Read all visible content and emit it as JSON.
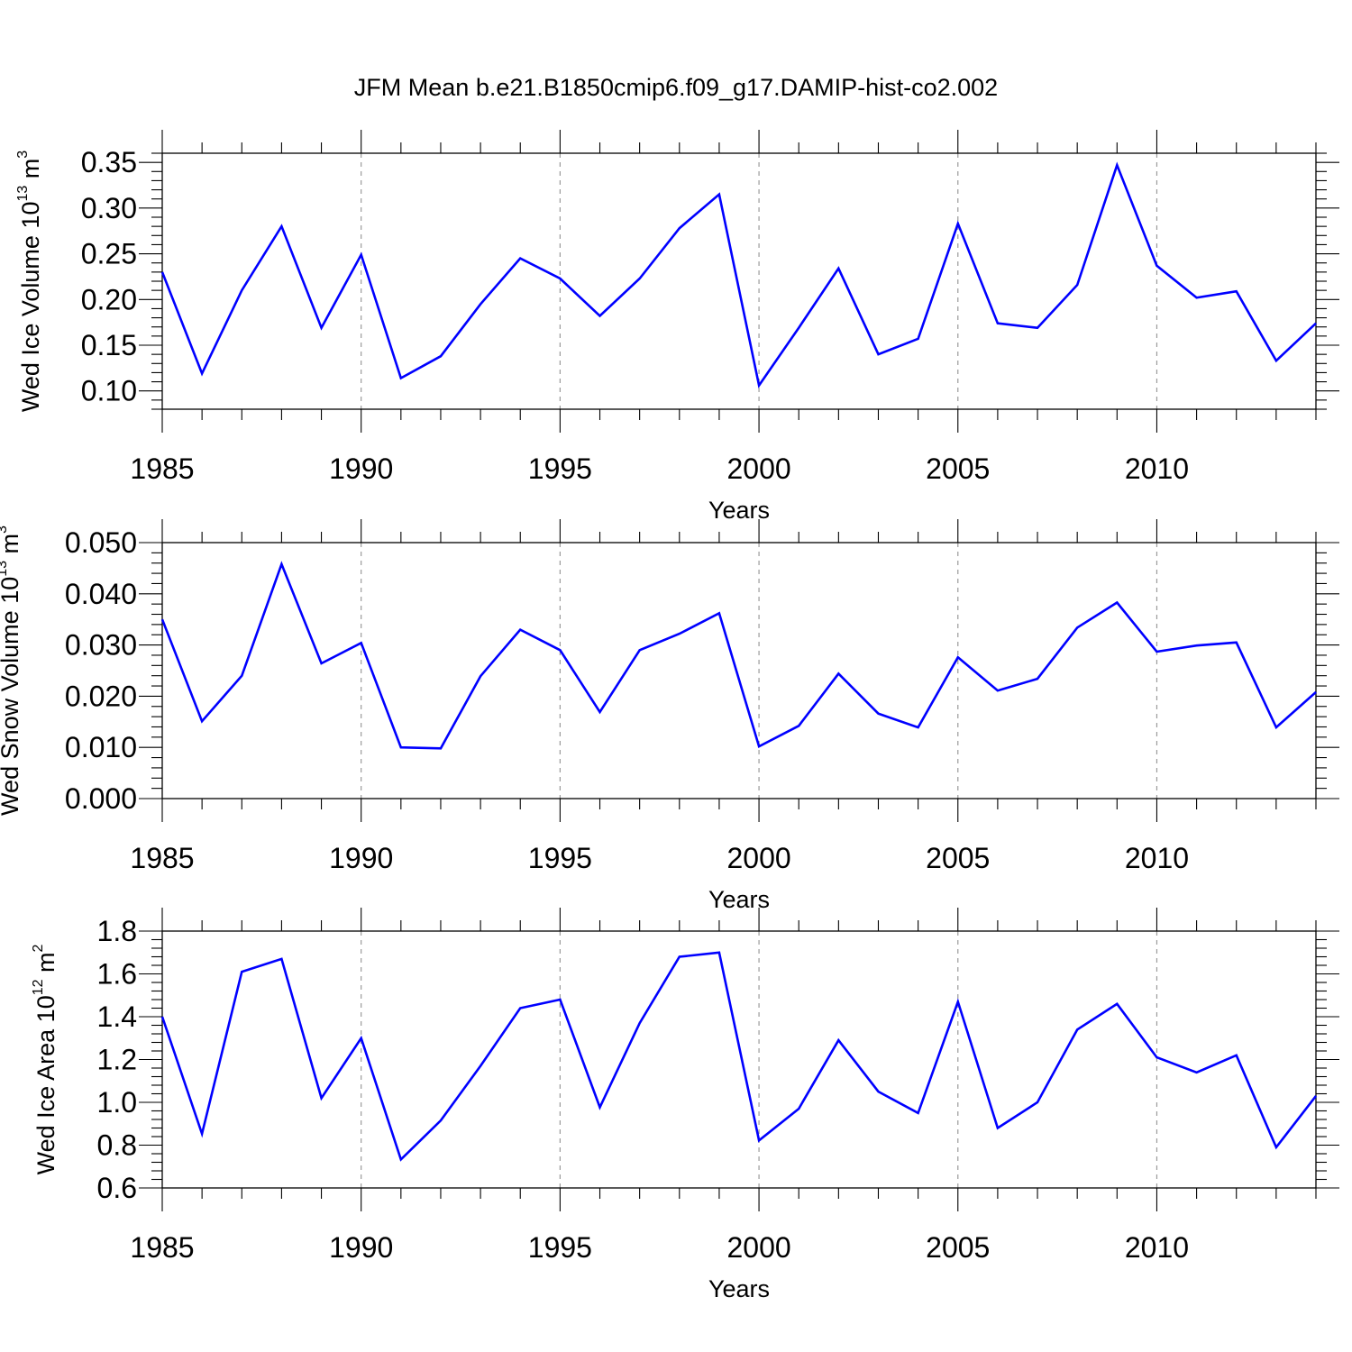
{
  "figure": {
    "title": "JFM Mean b.e21.B1850cmip6.f09_g17.DAMIP-hist-co2.002"
  },
  "chart_data": [
    {
      "type": "line",
      "title": "",
      "xlabel": "Years",
      "ylabel": {
        "main": "Wed Ice Volume 10",
        "exp": "13",
        "unit": " m",
        "unit_exp": "3"
      },
      "xlim": [
        1985,
        2014
      ],
      "ylim": [
        0.08,
        0.36
      ],
      "xticks": [
        1985,
        1990,
        1995,
        2000,
        2005,
        2010
      ],
      "xtick_labels": [
        "1985",
        "1990",
        "1995",
        "2000",
        "2005",
        "2010"
      ],
      "yticks": [
        0.1,
        0.15,
        0.2,
        0.25,
        0.3,
        0.35
      ],
      "ytick_labels": [
        "0.10",
        "0.15",
        "0.20",
        "0.25",
        "0.30",
        "0.35"
      ],
      "grid": "x-dashed",
      "line_color": "#0000ff",
      "x": [
        1985,
        1986,
        1987,
        1988,
        1989,
        1990,
        1991,
        1992,
        1993,
        1994,
        1995,
        1996,
        1997,
        1998,
        1999,
        2000,
        2001,
        2002,
        2003,
        2004,
        2005,
        2006,
        2007,
        2008,
        2009,
        2010,
        2011,
        2012,
        2013,
        2014
      ],
      "series": [
        {
          "values": [
            0.23,
            0.119,
            0.21,
            0.28,
            0.169,
            0.249,
            0.114,
            0.138,
            0.195,
            0.245,
            0.223,
            0.182,
            0.223,
            0.278,
            0.315,
            0.106,
            0.169,
            0.234,
            0.14,
            0.157,
            0.283,
            0.174,
            0.169,
            0.216,
            0.347,
            0.237,
            0.202,
            0.209,
            0.133,
            0.174
          ]
        }
      ]
    },
    {
      "type": "line",
      "title": "",
      "xlabel": "Years",
      "ylabel": {
        "main": "Wed Snow Volume 10",
        "exp": "13",
        "unit": " m",
        "unit_exp": "3"
      },
      "xlim": [
        1985,
        2014
      ],
      "ylim": [
        0.0,
        0.05
      ],
      "xticks": [
        1985,
        1990,
        1995,
        2000,
        2005,
        2010
      ],
      "xtick_labels": [
        "1985",
        "1990",
        "1995",
        "2000",
        "2005",
        "2010"
      ],
      "yticks": [
        0.0,
        0.01,
        0.02,
        0.03,
        0.04,
        0.05
      ],
      "ytick_labels": [
        "0.000",
        "0.010",
        "0.020",
        "0.030",
        "0.040",
        "0.050"
      ],
      "grid": "x-dashed",
      "line_color": "#0000ff",
      "x": [
        1985,
        1986,
        1987,
        1988,
        1989,
        1990,
        1991,
        1992,
        1993,
        1994,
        1995,
        1996,
        1997,
        1998,
        1999,
        2000,
        2001,
        2002,
        2003,
        2004,
        2005,
        2006,
        2007,
        2008,
        2009,
        2010,
        2011,
        2012,
        2013,
        2014
      ],
      "series": [
        {
          "values": [
            0.035,
            0.0151,
            0.024,
            0.0458,
            0.0264,
            0.0304,
            0.01,
            0.0098,
            0.0239,
            0.033,
            0.029,
            0.0169,
            0.029,
            0.0322,
            0.0362,
            0.0102,
            0.0142,
            0.0244,
            0.0166,
            0.0139,
            0.0276,
            0.0211,
            0.0234,
            0.0334,
            0.0383,
            0.0287,
            0.0299,
            0.0305,
            0.0139,
            0.0208
          ]
        }
      ]
    },
    {
      "type": "line",
      "title": "",
      "xlabel": "Years",
      "ylabel": {
        "main": "Wed Ice Area 10",
        "exp": "12",
        "unit": " m",
        "unit_exp": "2"
      },
      "xlim": [
        1985,
        2014
      ],
      "ylim": [
        0.6,
        1.8
      ],
      "xticks": [
        1985,
        1990,
        1995,
        2000,
        2005,
        2010
      ],
      "xtick_labels": [
        "1985",
        "1990",
        "1995",
        "2000",
        "2005",
        "2010"
      ],
      "yticks": [
        0.6,
        0.8,
        1.0,
        1.2,
        1.4,
        1.6,
        1.8
      ],
      "ytick_labels": [
        "0.6",
        "0.8",
        "1.0",
        "1.2",
        "1.4",
        "1.6",
        "1.8"
      ],
      "grid": "x-dashed",
      "line_color": "#0000ff",
      "x": [
        1985,
        1986,
        1987,
        1988,
        1989,
        1990,
        1991,
        1992,
        1993,
        1994,
        1995,
        1996,
        1997,
        1998,
        1999,
        2000,
        2001,
        2002,
        2003,
        2004,
        2005,
        2006,
        2007,
        2008,
        2009,
        2010,
        2011,
        2012,
        2013,
        2014
      ],
      "series": [
        {
          "values": [
            1.4,
            0.853,
            1.61,
            1.67,
            1.02,
            1.3,
            0.733,
            0.915,
            1.17,
            1.44,
            1.48,
            0.977,
            1.37,
            1.68,
            1.7,
            0.822,
            0.97,
            1.29,
            1.05,
            0.95,
            1.47,
            0.88,
            1.0,
            1.34,
            1.46,
            1.21,
            1.14,
            1.22,
            0.79,
            1.03
          ]
        }
      ]
    }
  ]
}
